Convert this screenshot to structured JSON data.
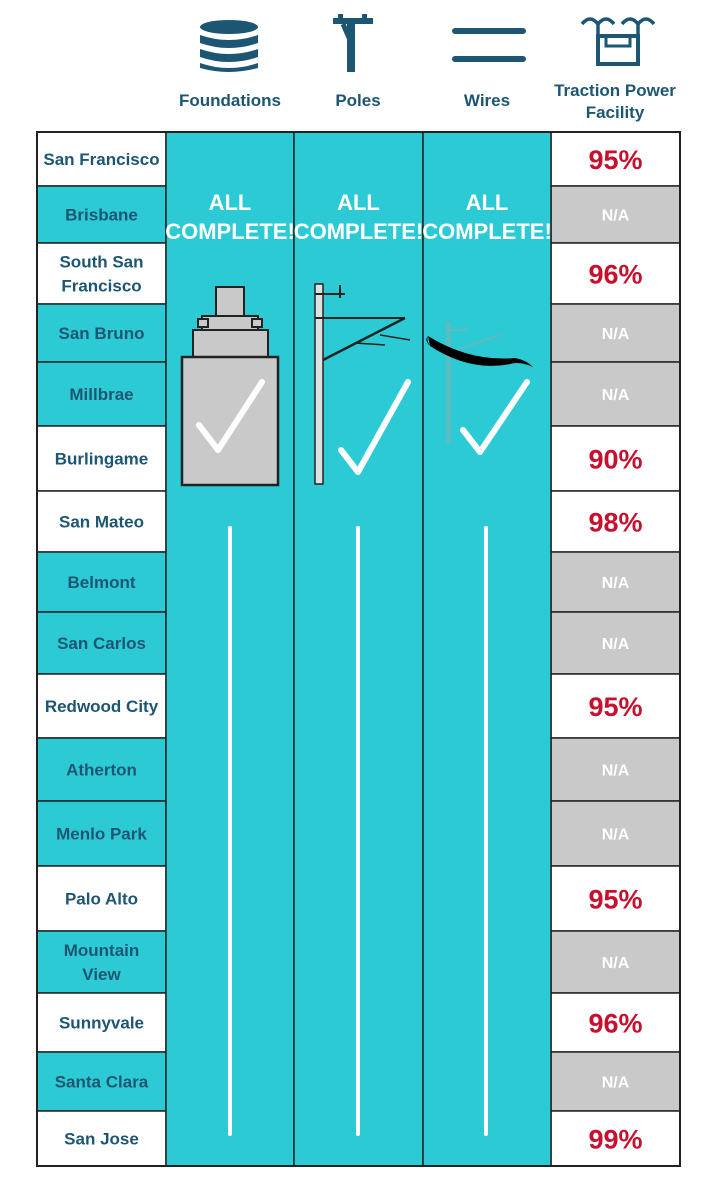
{
  "chart_data": {
    "type": "table",
    "columns": [
      "Foundations",
      "Poles",
      "Wires",
      "Traction Power Facility"
    ],
    "complete_text_line1": "ALL",
    "complete_text_line2": "COMPLETE!",
    "rows": [
      {
        "city": "San Francisco",
        "tpf": "95%"
      },
      {
        "city": "Brisbane",
        "tpf": "N/A"
      },
      {
        "city": "South San Francisco",
        "tpf": "96%"
      },
      {
        "city": "San Bruno",
        "tpf": "N/A"
      },
      {
        "city": "Millbrae",
        "tpf": "N/A"
      },
      {
        "city": "Burlingame",
        "tpf": "90%"
      },
      {
        "city": "San Mateo",
        "tpf": "98%"
      },
      {
        "city": "Belmont",
        "tpf": "N/A"
      },
      {
        "city": "San Carlos",
        "tpf": "N/A"
      },
      {
        "city": "Redwood City",
        "tpf": "95%"
      },
      {
        "city": "Atherton",
        "tpf": "N/A"
      },
      {
        "city": "Menlo Park",
        "tpf": "N/A"
      },
      {
        "city": "Palo Alto",
        "tpf": "95%"
      },
      {
        "city": "Mountain View",
        "tpf": "N/A"
      },
      {
        "city": "Sunnyvale",
        "tpf": "96%"
      },
      {
        "city": "Santa Clara",
        "tpf": "N/A"
      },
      {
        "city": "San Jose",
        "tpf": "99%"
      }
    ]
  },
  "icons": [
    "foundation-icon",
    "pole-icon",
    "wires-icon",
    "traction-power-facility-icon"
  ],
  "colors": {
    "teal": "#2ccad4",
    "navy": "#1d5673",
    "red": "#c8102e",
    "gray": "#c9c9c9",
    "border": "#222222"
  }
}
